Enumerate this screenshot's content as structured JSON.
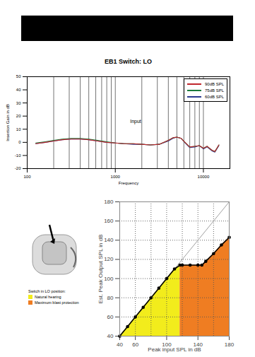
{
  "chart_data": [
    {
      "type": "line",
      "title": "EB1 Switch: LO",
      "x_label": "Frequency",
      "y_label": "Insertion Gain in dB",
      "log": "x",
      "grid": true,
      "legend": "upper right",
      "xlim": [
        100,
        20000
      ],
      "xticks": [
        100,
        1000,
        10000
      ],
      "ylim": [
        -20,
        50
      ],
      "yticks": [
        -20,
        -10,
        0,
        10,
        20,
        30,
        40,
        50
      ],
      "x": [
        125,
        160,
        200,
        250,
        315,
        400,
        500,
        630,
        800,
        1000,
        1250,
        1600,
        2000,
        2500,
        3150,
        4000,
        4500,
        5000,
        5600,
        6300,
        7000,
        8000,
        9000,
        10000,
        11000,
        12500,
        13500,
        15000
      ],
      "series": [
        {
          "name": "90dB SPL",
          "color": "#c0272d",
          "values": [
            -1,
            0,
            1,
            2,
            2.5,
            2.5,
            2,
            1,
            0,
            -0.5,
            -1,
            -1,
            -1.5,
            -2,
            -1.5,
            1.5,
            3.5,
            4,
            3,
            -0.5,
            -3.5,
            -3,
            -2.5,
            -4.5,
            -3,
            -6,
            -7,
            -2
          ]
        },
        {
          "name": "75dB SPL",
          "color": "#1a7a3a",
          "values": [
            -0.5,
            0.5,
            1.5,
            2.5,
            3,
            3,
            2.5,
            1.5,
            0.5,
            -0.5,
            -1,
            -1,
            -1.5,
            -2,
            -1.5,
            1.5,
            3.5,
            4,
            3,
            -0.5,
            -3.5,
            -3,
            -2.5,
            -4.5,
            -3,
            -6,
            -7,
            -2
          ]
        },
        {
          "name": "60dB SPL",
          "color": "#2b3a8f",
          "values": [
            -1,
            0,
            1,
            2,
            2.5,
            2.5,
            2,
            1,
            0,
            -0.5,
            -1,
            -1.5,
            -1.5,
            -2,
            -1.5,
            1,
            3,
            4,
            3,
            -1,
            -4,
            -3.5,
            -2.5,
            -5,
            -3.5,
            -6.5,
            -7.5,
            -2.5
          ]
        }
      ],
      "annotations": [
        {
          "text": "Input",
          "x": 1700,
          "y": 16
        }
      ]
    },
    {
      "type": "line",
      "x_label": "Peak input SPL in dB",
      "y_label": "Est. Peak Output SPL in dB",
      "grid": true,
      "xlim": [
        40,
        180
      ],
      "xticks": [
        40,
        60,
        100,
        140,
        180
      ],
      "ylim": [
        40,
        180
      ],
      "yticks": [
        40,
        60,
        80,
        100,
        120,
        140,
        160,
        180
      ],
      "x": [
        40,
        50,
        60,
        70,
        80,
        90,
        100,
        110,
        117,
        120,
        130,
        140,
        145,
        150,
        160,
        170,
        180
      ],
      "series": [
        {
          "color": "#888888",
          "line_style": "solid",
          "values": [
            40,
            50,
            60,
            70,
            80,
            90,
            100,
            110,
            117,
            120,
            130,
            140,
            145,
            150,
            160,
            170,
            180
          ]
        },
        {
          "color": "#000000",
          "marker": "circle",
          "values": [
            40,
            50,
            60,
            70,
            80,
            90,
            100,
            110,
            114,
            114,
            114,
            114,
            114,
            118,
            126,
            135,
            143
          ]
        }
      ],
      "legend_title": "Switch in LO position:",
      "regions": [
        {
          "name": "Natural hearing",
          "color": "#f2ec1c",
          "x": [
            40,
            117
          ]
        },
        {
          "name": "Maximum blast protection",
          "color": "#ef7d22",
          "x": [
            117,
            180
          ]
        }
      ]
    }
  ]
}
